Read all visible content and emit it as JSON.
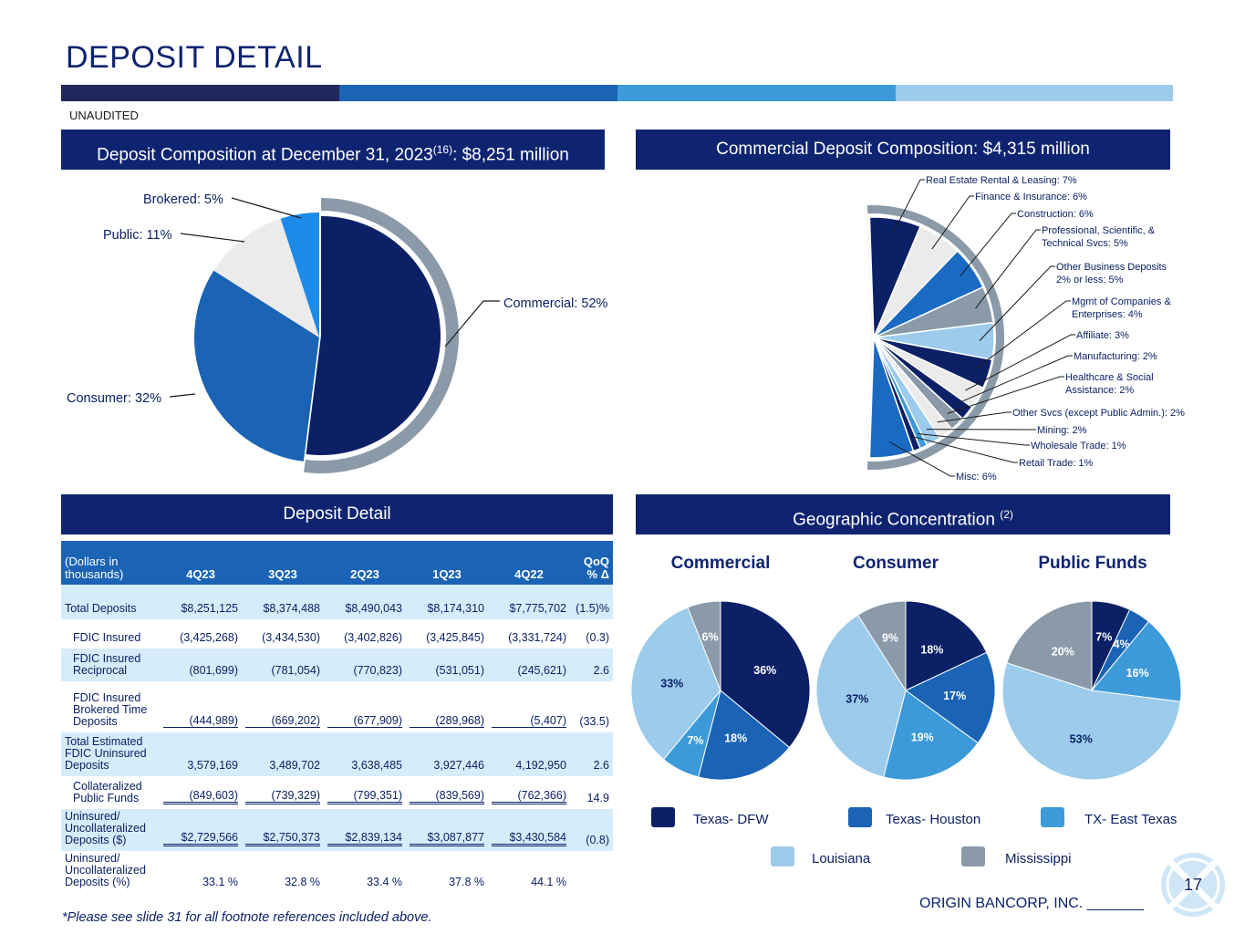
{
  "header": {
    "title": "DEPOSIT DETAIL",
    "unaudited": "UNAUDITED"
  },
  "colors": {
    "navy": "#0f2470",
    "stripe": [
      "#22285e",
      "#1a63b5",
      "#3d9ad8",
      "#9ccbec"
    ]
  },
  "panels": {
    "composition_title": "Deposit Composition at December 31, 2023",
    "composition_sup": "(16)",
    "composition_suffix": ": $8,251 million",
    "commercial_title": "Commercial Deposit Composition: $4,315 million",
    "detail_title": "Deposit Detail",
    "geo_title": "Geographic Concentration",
    "geo_sup": "(2)"
  },
  "chart_data": [
    {
      "type": "pie",
      "title": "Deposit Composition at December 31, 2023: $8,251 million",
      "slices": [
        {
          "label": "Commercial: 52%",
          "value": 52,
          "color": "#0c2066"
        },
        {
          "label": "Consumer: 32%",
          "value": 32,
          "color": "#1a63b5"
        },
        {
          "label": "Public: 11%",
          "value": 11,
          "color": "#ebebeb"
        },
        {
          "label": "Brokered: 5%",
          "value": 5,
          "color": "#1b8ae8"
        }
      ]
    },
    {
      "type": "pie",
      "title": "Commercial Deposit Composition: $4,315 million",
      "slices": [
        {
          "label": "Real Estate Rental & Leasing: 7%",
          "value": 7,
          "color": "#0c2066"
        },
        {
          "label": "Finance & Insurance: 6%",
          "value": 6,
          "color": "#ebebeb"
        },
        {
          "label": "Construction: 6%",
          "value": 6,
          "color": "#1a6ac2"
        },
        {
          "label": "Professional, Scientific, & Technical Svcs: 5%",
          "value": 5,
          "color": "#8a9aa8"
        },
        {
          "label": "Other Business Deposits 2% or less: 5%",
          "value": 5,
          "color": "#9ccbec"
        },
        {
          "label": "Mgmt of Companies & Enterprises: 4%",
          "value": 4,
          "color": "#0c2066"
        },
        {
          "label": "Affiliate: 3%",
          "value": 3,
          "color": "#ebebeb"
        },
        {
          "label": "Manufacturing: 2%",
          "value": 2,
          "color": "#0c2066"
        },
        {
          "label": "Healthcare & Social Assistance: 2%",
          "value": 2,
          "color": "#8a9aa8"
        },
        {
          "label": "Other Svcs (except Public Admin.): 2%",
          "value": 2,
          "color": "#ebebeb"
        },
        {
          "label": "Mining: 2%",
          "value": 2,
          "color": "#9ccbec"
        },
        {
          "label": "Wholesale Trade: 1%",
          "value": 1,
          "color": "#3d9ad8"
        },
        {
          "label": "Retail Trade: 1%",
          "value": 1,
          "color": "#0c2066"
        },
        {
          "label": "Misc: 6%",
          "value": 6,
          "color": "#1a6ac2"
        }
      ]
    },
    {
      "type": "pie",
      "title": "Commercial",
      "slices": [
        {
          "label": "36%",
          "value": 36,
          "color": "#0c2066"
        },
        {
          "label": "18%",
          "value": 18,
          "color": "#1a63b5"
        },
        {
          "label": "7%",
          "value": 7,
          "color": "#3d9ad8"
        },
        {
          "label": "33%",
          "value": 33,
          "color": "#9ccbec"
        },
        {
          "label": "6%",
          "value": 6,
          "color": "#8a9aa8"
        }
      ]
    },
    {
      "type": "pie",
      "title": "Consumer",
      "slices": [
        {
          "label": "18%",
          "value": 18,
          "color": "#0c2066"
        },
        {
          "label": "17%",
          "value": 17,
          "color": "#1a63b5"
        },
        {
          "label": "19%",
          "value": 19,
          "color": "#3d9ad8"
        },
        {
          "label": "37%",
          "value": 37,
          "color": "#9ccbec"
        },
        {
          "label": "9%",
          "value": 9,
          "color": "#8a9aa8"
        }
      ]
    },
    {
      "type": "pie",
      "title": "Public Funds",
      "slices": [
        {
          "label": "7%",
          "value": 7,
          "color": "#0c2066"
        },
        {
          "label": "4%",
          "value": 4,
          "color": "#1a63b5"
        },
        {
          "label": "16%",
          "value": 16,
          "color": "#3d9ad8"
        },
        {
          "label": "53%",
          "value": 53,
          "color": "#9ccbec"
        },
        {
          "label": "20%",
          "value": 20,
          "color": "#8a9aa8"
        }
      ]
    }
  ],
  "legend": [
    {
      "label": "Texas- DFW",
      "color": "#0c2066"
    },
    {
      "label": "Texas- Houston",
      "color": "#1a63b5"
    },
    {
      "label": "TX- East Texas",
      "color": "#3d9ad8"
    },
    {
      "label": "Louisiana",
      "color": "#9ccbec"
    },
    {
      "label": "Mississippi",
      "color": "#8a9aa8"
    }
  ],
  "table": {
    "label_header_1": "(Dollars in",
    "label_header_2": "thousands)",
    "columns": [
      "4Q23",
      "3Q23",
      "2Q23",
      "1Q23",
      "4Q22"
    ],
    "change_header_1": "QoQ",
    "change_header_2": "% Δ",
    "rows": [
      {
        "label": "Total Deposits",
        "values": [
          "$8,251,125",
          "$8,374,488",
          "$8,490,043",
          "$8,174,310",
          "$7,775,702"
        ],
        "change": "(1.5)%"
      },
      {
        "label": "FDIC Insured",
        "values": [
          "(3,425,268)",
          "(3,434,530)",
          "(3,402,826)",
          "(3,425,845)",
          "(3,331,724)"
        ],
        "change": "(0.3)"
      },
      {
        "label": "FDIC Insured Reciprocal",
        "values": [
          "(801,699)",
          "(781,054)",
          "(770,823)",
          "(531,051)",
          "(245,621)"
        ],
        "change": "2.6"
      },
      {
        "label": "FDIC Insured Brokered Time Deposits",
        "values": [
          "(444,989)",
          "(669,202)",
          "(677,909)",
          "(289,968)",
          "(5,407)"
        ],
        "change": "(33.5)"
      },
      {
        "label": "Total Estimated FDIC Uninsured Deposits",
        "values": [
          "3,579,169",
          "3,489,702",
          "3,638,485",
          "3,927,446",
          "4,192,950"
        ],
        "change": "2.6"
      },
      {
        "label": "Collateralized Public Funds",
        "values": [
          "(849,603)",
          "(739,329)",
          "(799,351)",
          "(839,569)",
          "(762,366)"
        ],
        "change": "14.9"
      },
      {
        "label": "Uninsured/ Uncollateralized Deposits ($)",
        "values": [
          "$2,729,566",
          "$2,750,373",
          "$2,839,134",
          "$3,087,877",
          "$3,430,584"
        ],
        "change": "(0.8)"
      },
      {
        "label": "Uninsured/ Uncollateralized Deposits (%)",
        "values": [
          "33.1 %",
          "32.8 %",
          "33.4 %",
          "37.8 %",
          "44.1 %"
        ],
        "change": ""
      }
    ]
  },
  "footer": {
    "footnote": "*Please see slide 31 for all footnote references included above.",
    "company": "ORIGIN BANCORP, INC. _______",
    "page": "17"
  }
}
